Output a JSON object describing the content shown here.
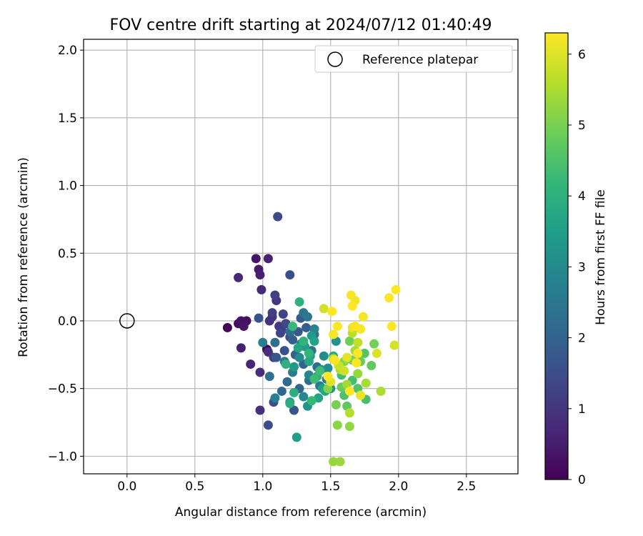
{
  "chart_data": {
    "type": "scatter",
    "title": "FOV centre drift starting at 2024/07/12 01:40:49",
    "xlabel": "Angular distance from reference (arcmin)",
    "ylabel": "Rotation from reference (arcmin)",
    "xlim": [
      -0.32,
      2.88
    ],
    "ylim": [
      -1.13,
      2.08
    ],
    "xticks": [
      0.0,
      0.5,
      1.0,
      1.5,
      2.0,
      2.5
    ],
    "xtick_labels": [
      "0.0",
      "0.5",
      "1.0",
      "1.5",
      "2.0",
      "2.5"
    ],
    "yticks": [
      -1.0,
      -0.5,
      0.0,
      0.5,
      1.0,
      1.5,
      2.0
    ],
    "ytick_labels": [
      "−1.0",
      "−0.5",
      "0.0",
      "0.5",
      "1.0",
      "1.5",
      "2.0"
    ],
    "grid": true,
    "legend": {
      "placement": "top-right",
      "entries": [
        "Reference platepar"
      ]
    },
    "reference_point": {
      "label": "Reference platepar",
      "x": 0.0,
      "y": 0.0
    },
    "colorbar": {
      "label": "Hours from first FF file",
      "range": [
        0,
        6.3
      ],
      "ticks": [
        0,
        1,
        2,
        3,
        4,
        5,
        6
      ],
      "tick_labels": [
        "0",
        "1",
        "2",
        "3",
        "4",
        "5",
        "6"
      ],
      "colormap": "viridis",
      "stops": [
        "#440154",
        "#482878",
        "#3e4989",
        "#31688e",
        "#26828e",
        "#1f9e89",
        "#35b779",
        "#6ece58",
        "#b5de2b",
        "#fde725"
      ]
    },
    "series": [
      {
        "points": [
          [
            0.74,
            -0.05,
            0.05
          ],
          [
            1.03,
            -0.21,
            0.08
          ],
          [
            0.82,
            -0.02,
            0.2
          ],
          [
            0.88,
            0.0,
            0.25
          ],
          [
            0.84,
            0.0,
            0.3
          ],
          [
            0.86,
            -0.04,
            0.35
          ],
          [
            0.95,
            0.46,
            0.35
          ],
          [
            0.97,
            0.38,
            0.45
          ],
          [
            0.98,
            0.34,
            0.55
          ],
          [
            1.04,
            0.46,
            0.6
          ],
          [
            0.84,
            -0.2,
            0.6
          ],
          [
            0.91,
            -0.32,
            0.65
          ],
          [
            0.82,
            0.32,
            0.7
          ],
          [
            0.99,
            0.23,
            0.75
          ],
          [
            0.98,
            -0.38,
            0.8
          ],
          [
            0.98,
            -0.66,
            0.85
          ],
          [
            1.04,
            -0.23,
            0.85
          ],
          [
            1.05,
            0.0,
            0.9
          ],
          [
            1.07,
            0.03,
            0.95
          ],
          [
            1.1,
            0.15,
            1.0
          ],
          [
            1.12,
            -0.04,
            1.05
          ],
          [
            1.14,
            -0.07,
            1.1
          ],
          [
            1.08,
            -0.27,
            1.15
          ],
          [
            1.07,
            0.06,
            1.2
          ],
          [
            1.09,
            0.19,
            1.2
          ],
          [
            1.13,
            -0.09,
            1.3
          ],
          [
            1.17,
            -0.02,
            1.35
          ],
          [
            1.15,
            0.05,
            1.3
          ],
          [
            1.11,
            0.77,
            1.4
          ],
          [
            1.08,
            -0.6,
            1.45
          ],
          [
            1.04,
            -0.77,
            1.5
          ],
          [
            1.2,
            0.34,
            1.5
          ],
          [
            1.2,
            -0.12,
            1.55
          ],
          [
            1.16,
            -0.22,
            1.6
          ],
          [
            0.97,
            0.02,
            1.6
          ],
          [
            1.23,
            -0.66,
            1.65
          ],
          [
            1.1,
            -0.27,
            1.7
          ],
          [
            1.26,
            -0.08,
            1.75
          ],
          [
            1.28,
            0.02,
            1.8
          ],
          [
            1.32,
            -0.05,
            1.85
          ],
          [
            1.22,
            -0.14,
            1.9
          ],
          [
            1.24,
            -0.25,
            1.95
          ],
          [
            1.3,
            -0.32,
            2.0
          ],
          [
            1.27,
            -0.5,
            2.05
          ],
          [
            1.14,
            -0.52,
            2.1
          ],
          [
            1.18,
            -0.45,
            2.15
          ],
          [
            1.34,
            -0.44,
            2.2
          ],
          [
            1.38,
            -0.1,
            2.25
          ],
          [
            1.4,
            -0.34,
            2.3
          ],
          [
            1.2,
            -0.08,
            2.3
          ],
          [
            1.09,
            -0.16,
            2.3
          ],
          [
            1.05,
            -0.41,
            2.35
          ],
          [
            1.36,
            -0.22,
            2.4
          ],
          [
            1.3,
            0.06,
            2.45
          ],
          [
            1.33,
            0.03,
            2.5
          ],
          [
            1.42,
            -0.48,
            2.55
          ],
          [
            1.47,
            -0.43,
            2.6
          ],
          [
            1.16,
            -0.3,
            2.6
          ],
          [
            1.22,
            -0.38,
            2.65
          ],
          [
            1.0,
            -0.16,
            2.7
          ],
          [
            1.09,
            -0.57,
            2.75
          ],
          [
            1.28,
            -0.17,
            2.8
          ],
          [
            1.38,
            -0.06,
            2.85
          ],
          [
            1.34,
            -0.4,
            2.9
          ],
          [
            1.3,
            -0.56,
            2.95
          ],
          [
            1.27,
            -0.27,
            3.0
          ],
          [
            1.45,
            -0.26,
            3.05
          ],
          [
            1.48,
            -0.35,
            3.1
          ],
          [
            1.5,
            -0.5,
            3.15
          ],
          [
            1.54,
            -0.15,
            3.2
          ],
          [
            1.33,
            -0.63,
            3.25
          ],
          [
            1.43,
            -0.36,
            3.3
          ],
          [
            1.2,
            -0.6,
            3.3
          ],
          [
            1.23,
            -0.34,
            3.35
          ],
          [
            1.36,
            -0.11,
            3.4
          ],
          [
            1.31,
            -0.19,
            3.45
          ],
          [
            1.35,
            -0.26,
            3.5
          ],
          [
            1.25,
            -0.86,
            3.5
          ],
          [
            1.44,
            -0.5,
            3.55
          ],
          [
            1.38,
            -0.15,
            3.6
          ],
          [
            1.41,
            -0.57,
            3.65
          ],
          [
            1.26,
            -0.2,
            3.7
          ],
          [
            1.34,
            -0.3,
            3.75
          ],
          [
            1.46,
            -0.52,
            3.8
          ],
          [
            1.52,
            -0.26,
            3.85
          ],
          [
            1.4,
            -0.41,
            3.9
          ],
          [
            1.2,
            -0.61,
            3.9
          ],
          [
            1.23,
            -0.53,
            3.95
          ],
          [
            1.17,
            -0.32,
            4.0
          ],
          [
            1.27,
            0.14,
            4.05
          ],
          [
            1.3,
            -0.15,
            4.1
          ],
          [
            1.34,
            -0.24,
            4.15
          ],
          [
            1.36,
            -0.59,
            4.2
          ],
          [
            1.22,
            -0.04,
            4.25
          ],
          [
            1.38,
            -0.43,
            4.3
          ],
          [
            1.42,
            -0.37,
            4.35
          ],
          [
            1.58,
            -0.4,
            4.35
          ],
          [
            1.66,
            -0.44,
            4.4
          ],
          [
            1.76,
            -0.58,
            4.45
          ],
          [
            1.6,
            -0.55,
            4.5
          ],
          [
            1.7,
            -0.5,
            4.55
          ],
          [
            1.75,
            -0.24,
            4.6
          ],
          [
            1.56,
            -0.33,
            4.65
          ],
          [
            1.62,
            -0.63,
            4.7
          ],
          [
            1.8,
            -0.33,
            4.75
          ],
          [
            1.58,
            -0.49,
            4.8
          ],
          [
            1.72,
            -0.3,
            4.85
          ],
          [
            1.64,
            -0.15,
            4.9
          ],
          [
            1.82,
            -0.17,
            4.95
          ],
          [
            1.54,
            -0.62,
            5.0
          ],
          [
            1.66,
            -0.29,
            5.05
          ],
          [
            1.48,
            -0.5,
            5.1
          ],
          [
            1.6,
            -0.3,
            5.15
          ],
          [
            1.55,
            -0.77,
            5.2
          ],
          [
            1.64,
            -0.78,
            5.25
          ],
          [
            1.7,
            -0.39,
            5.3
          ],
          [
            1.52,
            -1.04,
            5.3
          ],
          [
            1.57,
            -1.04,
            5.35
          ],
          [
            1.62,
            -0.47,
            5.4
          ],
          [
            1.68,
            -0.22,
            5.45
          ],
          [
            1.76,
            -0.46,
            5.5
          ],
          [
            1.87,
            -0.52,
            5.5
          ],
          [
            1.57,
            -0.36,
            5.55
          ],
          [
            1.64,
            -0.68,
            5.6
          ],
          [
            1.66,
            -0.09,
            5.65
          ],
          [
            1.7,
            -0.16,
            5.7
          ],
          [
            1.52,
            -0.28,
            5.75
          ],
          [
            1.56,
            -0.33,
            5.8
          ],
          [
            1.6,
            -0.37,
            5.85
          ],
          [
            1.45,
            0.09,
            5.85
          ],
          [
            1.97,
            -0.18,
            5.9
          ],
          [
            1.84,
            -0.24,
            5.95
          ],
          [
            1.5,
            -0.45,
            6.0
          ],
          [
            1.62,
            -0.27,
            6.05
          ],
          [
            1.72,
            -0.55,
            6.1
          ],
          [
            1.66,
            -0.05,
            6.1
          ],
          [
            1.68,
            0.15,
            6.15
          ],
          [
            1.74,
            0.03,
            6.2
          ],
          [
            1.52,
            -0.1,
            6.2
          ],
          [
            1.68,
            -0.04,
            6.25
          ],
          [
            1.72,
            -0.06,
            6.25
          ],
          [
            1.65,
            0.19,
            6.25
          ],
          [
            1.66,
            0.11,
            6.3
          ],
          [
            1.53,
            -0.29,
            6.3
          ],
          [
            1.51,
            0.07,
            6.3
          ],
          [
            1.48,
            -0.41,
            6.3
          ],
          [
            1.64,
            -0.52,
            6.3
          ],
          [
            1.7,
            -0.24,
            6.3
          ],
          [
            1.69,
            -0.31,
            6.3
          ],
          [
            1.93,
            0.17,
            6.3
          ],
          [
            1.98,
            0.23,
            6.3
          ],
          [
            1.95,
            -0.04,
            6.3
          ],
          [
            1.55,
            -0.04,
            6.3
          ]
        ]
      }
    ]
  }
}
